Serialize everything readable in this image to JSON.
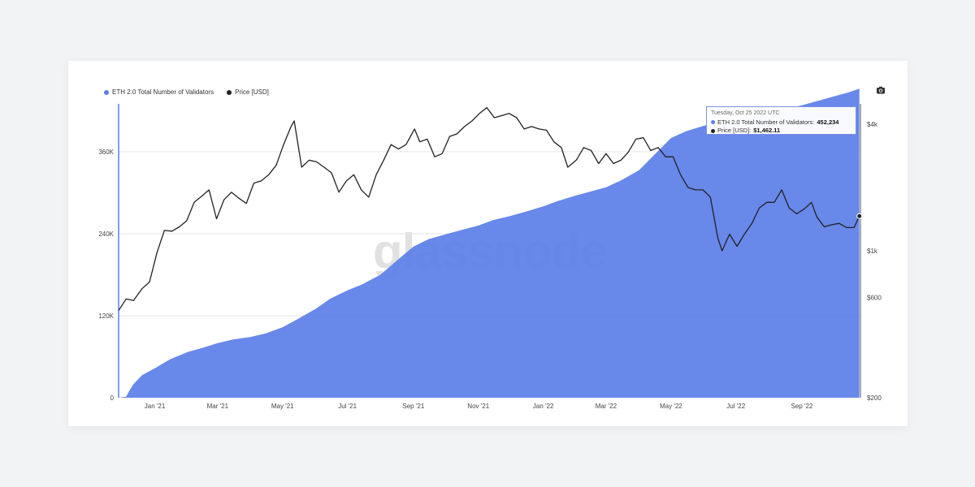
{
  "legend": {
    "items": [
      {
        "label": "ETH 2.0 Total Number of Validators",
        "color": "#5b7ee8"
      },
      {
        "label": "Price [USD]",
        "color": "#222222"
      }
    ]
  },
  "watermark": "glassnode",
  "tooltip": {
    "date": "Tuesday, Oct 25 2022 UTC",
    "validators_label": "ETH 2.0 Total Number of Validators:",
    "validators_value": "452,234",
    "price_label": "Price [USD]:",
    "price_value": "$1,462.11"
  },
  "icons": {
    "camera": "camera-icon"
  },
  "chart_data": {
    "type": "area",
    "x_tick_labels": [
      "Jan '21",
      "Mar '21",
      "May '21",
      "Jul '21",
      "Sep '21",
      "Nov '21",
      "Jan '22",
      "Mar '22",
      "May '22",
      "Jul '22",
      "Sep '22"
    ],
    "y_left": {
      "tick_labels": [
        "0",
        "120K",
        "240K",
        "360K"
      ],
      "ticks": [
        0,
        120000,
        240000,
        360000
      ],
      "range": [
        0,
        430000
      ]
    },
    "y_right": {
      "scale": "log",
      "tick_labels": [
        "$200",
        "$600",
        "$1k",
        "$4k"
      ],
      "ticks": [
        200,
        600,
        1000,
        4000
      ],
      "range": [
        200,
        5000
      ]
    },
    "x_range": [
      "2020-11-28",
      "2022-10-26"
    ],
    "series": [
      {
        "name": "ETH 2.0 Total Number of Validators",
        "axis": "left",
        "color": "#5b7ee8",
        "points": [
          [
            "2020-11-28",
            0
          ],
          [
            "2020-12-05",
            1500
          ],
          [
            "2020-12-08",
            10000
          ],
          [
            "2020-12-12",
            20000
          ],
          [
            "2020-12-20",
            33000
          ],
          [
            "2021-01-01",
            43000
          ],
          [
            "2021-01-15",
            56000
          ],
          [
            "2021-02-01",
            67000
          ],
          [
            "2021-02-15",
            73000
          ],
          [
            "2021-03-01",
            80000
          ],
          [
            "2021-03-15",
            85000
          ],
          [
            "2021-04-01",
            89000
          ],
          [
            "2021-04-15",
            94000
          ],
          [
            "2021-05-01",
            103000
          ],
          [
            "2021-05-15",
            115000
          ],
          [
            "2021-06-01",
            130000
          ],
          [
            "2021-06-15",
            145000
          ],
          [
            "2021-07-01",
            157000
          ],
          [
            "2021-07-15",
            166000
          ],
          [
            "2021-08-01",
            180000
          ],
          [
            "2021-08-15",
            199000
          ],
          [
            "2021-09-01",
            221000
          ],
          [
            "2021-09-15",
            232000
          ],
          [
            "2021-10-01",
            239000
          ],
          [
            "2021-10-15",
            245000
          ],
          [
            "2021-11-01",
            252000
          ],
          [
            "2021-11-15",
            260000
          ],
          [
            "2021-12-01",
            266000
          ],
          [
            "2021-12-15",
            272000
          ],
          [
            "2022-01-01",
            280000
          ],
          [
            "2022-01-15",
            288000
          ],
          [
            "2022-02-01",
            296000
          ],
          [
            "2022-02-15",
            302000
          ],
          [
            "2022-03-01",
            308000
          ],
          [
            "2022-03-15",
            318000
          ],
          [
            "2022-04-01",
            333000
          ],
          [
            "2022-04-15",
            355000
          ],
          [
            "2022-05-01",
            380000
          ],
          [
            "2022-05-15",
            390000
          ],
          [
            "2022-06-01",
            398000
          ],
          [
            "2022-06-15",
            403000
          ],
          [
            "2022-07-01",
            407000
          ],
          [
            "2022-07-15",
            412000
          ],
          [
            "2022-08-01",
            417000
          ],
          [
            "2022-08-15",
            422000
          ],
          [
            "2022-09-01",
            428000
          ],
          [
            "2022-09-15",
            434000
          ],
          [
            "2022-10-01",
            441000
          ],
          [
            "2022-10-15",
            447000
          ],
          [
            "2022-10-25",
            452234
          ]
        ]
      },
      {
        "name": "Price [USD]",
        "axis": "right",
        "color": "#222222",
        "points": [
          [
            "2020-11-28",
            520
          ],
          [
            "2020-12-05",
            590
          ],
          [
            "2020-12-12",
            580
          ],
          [
            "2020-12-20",
            660
          ],
          [
            "2020-12-27",
            710
          ],
          [
            "2021-01-03",
            980
          ],
          [
            "2021-01-10",
            1250
          ],
          [
            "2021-01-17",
            1240
          ],
          [
            "2021-01-24",
            1300
          ],
          [
            "2021-01-31",
            1390
          ],
          [
            "2021-02-07",
            1700
          ],
          [
            "2021-02-14",
            1820
          ],
          [
            "2021-02-21",
            1950
          ],
          [
            "2021-02-28",
            1420
          ],
          [
            "2021-03-07",
            1750
          ],
          [
            "2021-03-14",
            1900
          ],
          [
            "2021-03-21",
            1780
          ],
          [
            "2021-03-28",
            1680
          ],
          [
            "2021-04-04",
            2100
          ],
          [
            "2021-04-11",
            2150
          ],
          [
            "2021-04-18",
            2300
          ],
          [
            "2021-04-25",
            2550
          ],
          [
            "2021-05-02",
            3200
          ],
          [
            "2021-05-09",
            3900
          ],
          [
            "2021-05-12",
            4150
          ],
          [
            "2021-05-19",
            2500
          ],
          [
            "2021-05-26",
            2700
          ],
          [
            "2021-06-02",
            2650
          ],
          [
            "2021-06-09",
            2500
          ],
          [
            "2021-06-16",
            2350
          ],
          [
            "2021-06-23",
            1900
          ],
          [
            "2021-06-30",
            2150
          ],
          [
            "2021-07-07",
            2300
          ],
          [
            "2021-07-14",
            1950
          ],
          [
            "2021-07-21",
            1800
          ],
          [
            "2021-07-28",
            2300
          ],
          [
            "2021-08-04",
            2700
          ],
          [
            "2021-08-11",
            3200
          ],
          [
            "2021-08-18",
            3050
          ],
          [
            "2021-08-25",
            3200
          ],
          [
            "2021-09-02",
            3800
          ],
          [
            "2021-09-07",
            3300
          ],
          [
            "2021-09-14",
            3400
          ],
          [
            "2021-09-21",
            2800
          ],
          [
            "2021-09-28",
            2900
          ],
          [
            "2021-10-05",
            3500
          ],
          [
            "2021-10-12",
            3600
          ],
          [
            "2021-10-19",
            3900
          ],
          [
            "2021-10-26",
            4150
          ],
          [
            "2021-11-02",
            4500
          ],
          [
            "2021-11-09",
            4800
          ],
          [
            "2021-11-16",
            4300
          ],
          [
            "2021-11-23",
            4400
          ],
          [
            "2021-11-30",
            4500
          ],
          [
            "2021-12-07",
            4300
          ],
          [
            "2021-12-14",
            3800
          ],
          [
            "2021-12-21",
            3900
          ],
          [
            "2021-12-28",
            3800
          ],
          [
            "2022-01-04",
            3750
          ],
          [
            "2022-01-11",
            3300
          ],
          [
            "2022-01-18",
            3100
          ],
          [
            "2022-01-24",
            2500
          ],
          [
            "2022-02-01",
            2700
          ],
          [
            "2022-02-08",
            3100
          ],
          [
            "2022-02-15",
            3000
          ],
          [
            "2022-02-22",
            2600
          ],
          [
            "2022-03-01",
            2900
          ],
          [
            "2022-03-08",
            2600
          ],
          [
            "2022-03-15",
            2700
          ],
          [
            "2022-03-22",
            2950
          ],
          [
            "2022-03-29",
            3400
          ],
          [
            "2022-04-05",
            3450
          ],
          [
            "2022-04-12",
            3000
          ],
          [
            "2022-04-19",
            3100
          ],
          [
            "2022-04-26",
            2800
          ],
          [
            "2022-05-03",
            2800
          ],
          [
            "2022-05-10",
            2300
          ],
          [
            "2022-05-17",
            2000
          ],
          [
            "2022-05-24",
            1950
          ],
          [
            "2022-05-31",
            1950
          ],
          [
            "2022-06-07",
            1800
          ],
          [
            "2022-06-14",
            1150
          ],
          [
            "2022-06-18",
            1000
          ],
          [
            "2022-06-25",
            1200
          ],
          [
            "2022-07-02",
            1050
          ],
          [
            "2022-07-09",
            1200
          ],
          [
            "2022-07-16",
            1350
          ],
          [
            "2022-07-23",
            1600
          ],
          [
            "2022-07-30",
            1700
          ],
          [
            "2022-08-06",
            1700
          ],
          [
            "2022-08-13",
            1950
          ],
          [
            "2022-08-20",
            1600
          ],
          [
            "2022-08-27",
            1500
          ],
          [
            "2022-09-03",
            1580
          ],
          [
            "2022-09-10",
            1700
          ],
          [
            "2022-09-15",
            1450
          ],
          [
            "2022-09-22",
            1300
          ],
          [
            "2022-09-29",
            1330
          ],
          [
            "2022-10-06",
            1350
          ],
          [
            "2022-10-13",
            1290
          ],
          [
            "2022-10-20",
            1290
          ],
          [
            "2022-10-25",
            1462
          ]
        ]
      }
    ],
    "grid": true,
    "legend_position": "top-left"
  }
}
